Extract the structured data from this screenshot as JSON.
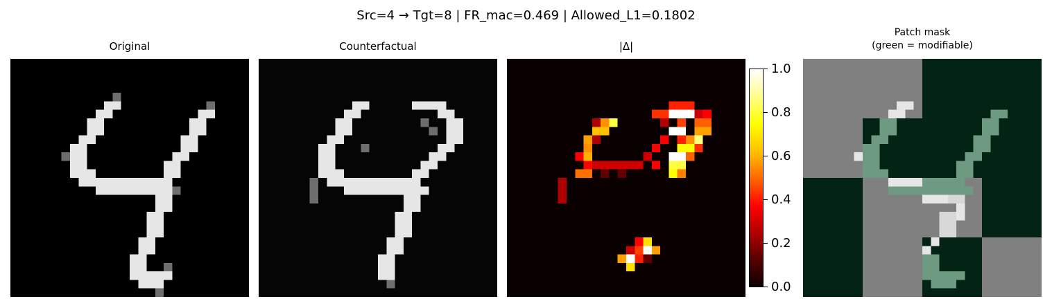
{
  "figure": {
    "suptitle": "Src=4 → Tgt=8 | FR_mac=0.469 | Allowed_L1=0.1802"
  },
  "panels": [
    {
      "title": "Original"
    },
    {
      "title": "Counterfactual"
    },
    {
      "title": "|Δ|"
    },
    {
      "title": "Patch mask\n(green = modifiable)"
    }
  ],
  "colorbar": {
    "ticks": [
      "0.0",
      "0.2",
      "0.4",
      "0.6",
      "0.8",
      "1.0"
    ],
    "colormap": "hot"
  },
  "colors": {
    "background": "#000000",
    "stroke": "#ffffff",
    "mask_green": "#032414",
    "mask_gray": "#808080"
  }
}
